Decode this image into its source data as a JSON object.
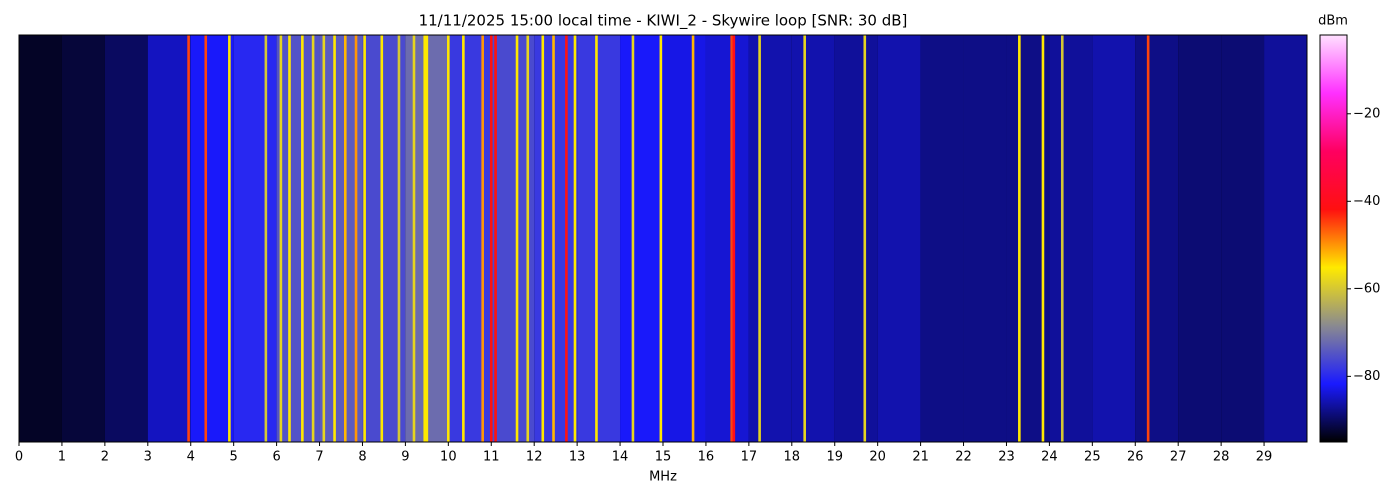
{
  "chart_data": {
    "type": "spectrogram",
    "title": "11/11/2025 15:00 local time - KIWI_2 - Skywire loop [SNR: 30 dB]",
    "xlabel": "MHz",
    "colorbar_label": "dBm",
    "xlim": [
      0,
      30
    ],
    "xticks": [
      0,
      1,
      2,
      3,
      4,
      5,
      6,
      7,
      8,
      9,
      10,
      11,
      12,
      13,
      14,
      15,
      16,
      17,
      18,
      19,
      20,
      21,
      22,
      23,
      24,
      25,
      26,
      27,
      28,
      29
    ],
    "clim": [
      -95,
      -2
    ],
    "cticks": [
      {
        "value": -20,
        "label": "−20"
      },
      {
        "value": -40,
        "label": "−40"
      },
      {
        "value": -60,
        "label": "−60"
      },
      {
        "value": -80,
        "label": "−80"
      }
    ],
    "colormap": [
      "#000000",
      "#1a1aff",
      "#8a8a90",
      "#ffea00",
      "#ff1010",
      "#ff0060",
      "#ff30ff",
      "#ffe0ff"
    ],
    "x": [
      0,
      1,
      2,
      3,
      4,
      5,
      6,
      7,
      8,
      9,
      10,
      11,
      12,
      13,
      14,
      15,
      16,
      17,
      18,
      19,
      20,
      21,
      22,
      23,
      24,
      25,
      26,
      27,
      28,
      29
    ],
    "noise": [
      -93,
      -92,
      -90,
      -85,
      -82,
      -80,
      -75,
      -74,
      -76,
      -72,
      -78,
      -76,
      -78,
      -78,
      -82,
      -83,
      -84,
      -86,
      -86,
      -87,
      -86,
      -88,
      -88,
      -88,
      -87,
      -86,
      -88,
      -89,
      -89,
      -87
    ],
    "signal_freqs": [
      3.95,
      4.35,
      4.9,
      5.75,
      6.1,
      6.3,
      6.6,
      6.85,
      7.1,
      7.35,
      7.6,
      7.85,
      8.05,
      8.45,
      8.85,
      9.2,
      9.45,
      9.5,
      10.0,
      10.35,
      10.8,
      11.0,
      11.1,
      11.6,
      11.85,
      12.2,
      12.45,
      12.75,
      12.95,
      13.45,
      14.3,
      14.95,
      15.7,
      16.6,
      16.65,
      17.25,
      18.3,
      19.7,
      23.3,
      23.85,
      24.3,
      26.3
    ],
    "signal_levels": [
      -45,
      -45,
      -55,
      -60,
      -58,
      -55,
      -55,
      -58,
      -58,
      -55,
      -52,
      -50,
      -55,
      -55,
      -60,
      -58,
      -55,
      -55,
      -55,
      -55,
      -50,
      -42,
      -42,
      -55,
      -58,
      -55,
      -52,
      -42,
      -55,
      -55,
      -58,
      -55,
      -52,
      -45,
      -40,
      -58,
      -58,
      -58,
      -55,
      -55,
      -60,
      -45
    ]
  }
}
